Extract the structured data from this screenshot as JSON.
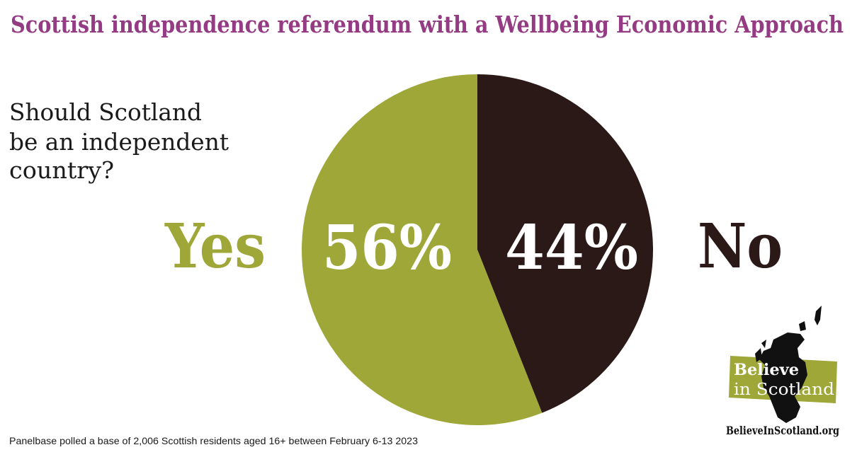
{
  "title": "Scottish independence referendum with a Wellbeing Economic Approach",
  "question": [
    "Should Scotland",
    "be an independent",
    "country?"
  ],
  "footnote": "Panelbase polled a base of 2,006 Scottish residents aged 16+ between February 6-13 2023",
  "logo": {
    "line1": "Believe",
    "line2": "in Scotland",
    "url": "BelieveInScotland.org",
    "icon": "scotland-map-icon"
  },
  "colors": {
    "title": "#953b83",
    "yes": "#9ea737",
    "no": "#2b1918",
    "text": "#1a1a1a"
  },
  "chart_data": {
    "type": "pie",
    "title": "Scottish independence referendum with a Wellbeing Economic Approach",
    "categories": [
      "No",
      "Yes"
    ],
    "values": [
      44,
      56
    ],
    "data_labels": [
      "44%",
      "56%"
    ],
    "series": [
      {
        "name": "No",
        "value": 44,
        "label": "44%",
        "color": "#2b1918"
      },
      {
        "name": "Yes",
        "value": 56,
        "label": "56%",
        "color": "#9ea737"
      }
    ],
    "start": "12 o'clock, clockwise",
    "legend": "side labels"
  }
}
